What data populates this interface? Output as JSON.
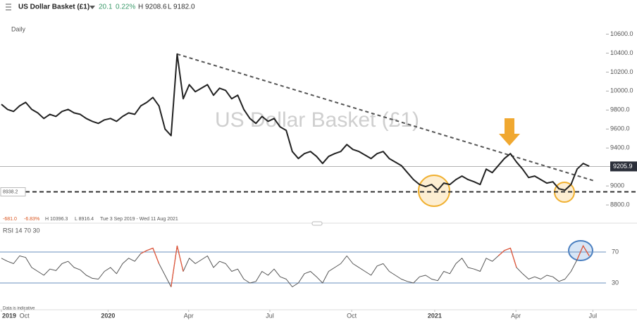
{
  "header": {
    "title": "US Dollar Basket (£1)",
    "change": "20.1",
    "change_pct": "0.22%",
    "high": "H 9208.6",
    "low": "L 9182.0"
  },
  "interval": "Daily",
  "watermark": "US Dollar Basket (£1)",
  "stats": {
    "change": "-681.0",
    "change_pct": "-6.83%",
    "high": "H 10396.3",
    "low": "L 8916.4",
    "range": "Tue 3 Sep 2019 - Wed 11 Aug 2021"
  },
  "footnote": "Data is indicative",
  "chart_data": [
    {
      "type": "line",
      "name": "US Dollar Basket (£1)",
      "color": "#222222",
      "xlim": [
        0,
        98
      ],
      "ylim": [
        8660,
        10700
      ],
      "yticks": [
        {
          "value": 8800,
          "label": "8800.0"
        },
        {
          "value": 9000,
          "label": "9000"
        },
        {
          "value": 9400,
          "label": "9400.0"
        },
        {
          "value": 9600,
          "label": "9600.0"
        },
        {
          "value": 9800,
          "label": "9800.0"
        },
        {
          "value": 10000,
          "label": "10000.0"
        },
        {
          "value": 10200,
          "label": "10200.0"
        },
        {
          "value": 10400,
          "label": "10400.0"
        },
        {
          "value": 10600,
          "label": "10600.0"
        }
      ],
      "values": [
        9860,
        9807,
        9785,
        9844,
        9881,
        9807,
        9770,
        9711,
        9755,
        9733,
        9785,
        9807,
        9770,
        9755,
        9711,
        9681,
        9659,
        9696,
        9711,
        9681,
        9733,
        9770,
        9755,
        9844,
        9881,
        9933,
        9844,
        9600,
        9530,
        10390,
        9919,
        10067,
        9993,
        10030,
        10067,
        9956,
        10030,
        10007,
        9919,
        9956,
        9807,
        9711,
        9659,
        9733,
        9681,
        9711,
        9622,
        9585,
        9363,
        9289,
        9341,
        9363,
        9311,
        9237,
        9311,
        9341,
        9363,
        9437,
        9385,
        9363,
        9326,
        9289,
        9341,
        9363,
        9289,
        9252,
        9215,
        9141,
        9067,
        9015,
        8993,
        9015,
        8956,
        9030,
        9015,
        9067,
        9104,
        9067,
        9044,
        9015,
        9178,
        9141,
        9215,
        9289,
        9341,
        9252,
        9178,
        9089,
        9104,
        9067,
        9030,
        9044,
        8970,
        8956,
        9015,
        9178,
        9237,
        9208
      ],
      "last": 9205.9,
      "hline": 8938.2,
      "trendline": [
        [
          29,
          10390
        ],
        [
          98,
          9050
        ]
      ]
    },
    {
      "type": "line",
      "name": "RSI 14 70 30",
      "color": "#555555",
      "overbought_color": "#e0573b",
      "xlim": [
        0,
        98
      ],
      "ylim": [
        0,
        100
      ],
      "yticks": [
        30,
        70
      ],
      "overbought": 70,
      "xticks": [
        {
          "value": 0,
          "label": "2019"
        },
        {
          "value": 3.8,
          "label": "Oct"
        },
        {
          "value": 17.6,
          "label": "2020"
        },
        {
          "value": 30.9,
          "label": "Apr"
        },
        {
          "value": 44.3,
          "label": "Jul"
        },
        {
          "value": 57.8,
          "label": "Oct"
        },
        {
          "value": 71.5,
          "label": "2021"
        },
        {
          "value": 84.9,
          "label": "Apr"
        },
        {
          "value": 97.6,
          "label": "Jul"
        }
      ],
      "values": [
        62,
        58,
        55,
        65,
        63,
        50,
        45,
        40,
        48,
        46,
        55,
        58,
        50,
        47,
        40,
        36,
        35,
        45,
        50,
        42,
        55,
        62,
        58,
        68,
        72,
        75,
        55,
        40,
        25,
        78,
        45,
        62,
        55,
        60,
        65,
        50,
        58,
        55,
        45,
        48,
        35,
        30,
        32,
        45,
        40,
        48,
        38,
        35,
        25,
        30,
        42,
        45,
        38,
        30,
        45,
        50,
        55,
        65,
        55,
        50,
        45,
        40,
        52,
        55,
        45,
        40,
        35,
        32,
        30,
        38,
        40,
        35,
        33,
        45,
        42,
        55,
        62,
        50,
        48,
        45,
        62,
        58,
        65,
        72,
        75,
        50,
        42,
        35,
        38,
        35,
        40,
        38,
        32,
        35,
        45,
        60,
        78,
        65
      ]
    }
  ]
}
